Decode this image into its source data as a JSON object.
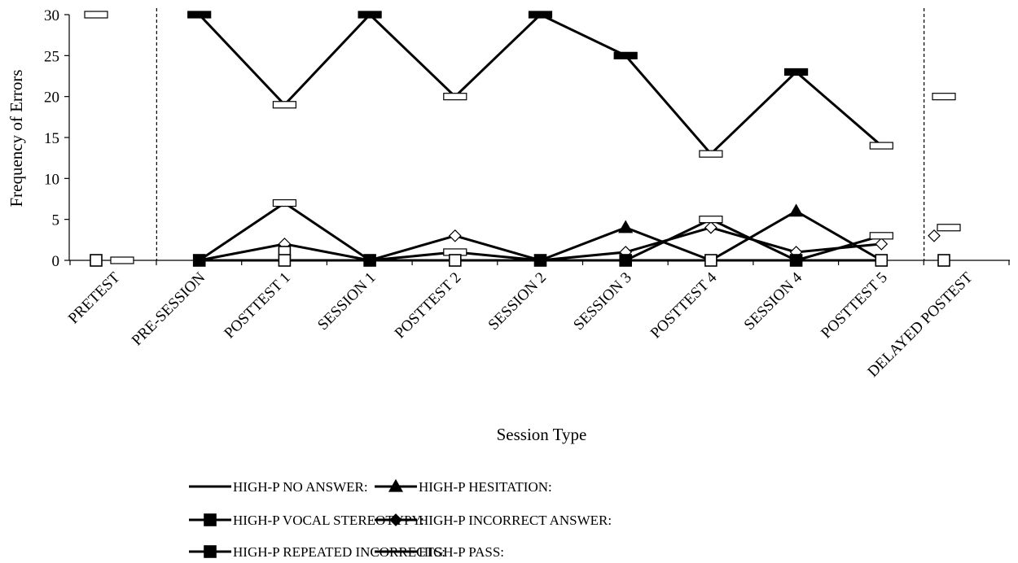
{
  "chart_data": {
    "type": "line",
    "title": "",
    "xlabel": "Session Type",
    "ylabel": "Frequency of Errors",
    "ylim": [
      0,
      30
    ],
    "yticks": [
      0,
      5,
      10,
      15,
      20,
      25,
      30
    ],
    "categories": [
      "PRETEST",
      "PRE-SESSION",
      "POSTTEST 1",
      "SESSION 1",
      "POSTTEST 2",
      "SESSION 2",
      "SESSION 3",
      "POSTTEST 4",
      "SESSION 4",
      "POSTTEST 5",
      "DELAYED POSTEST"
    ],
    "phase_breaks_after": [
      "PRETEST",
      "POSTTEST 5"
    ],
    "series": [
      {
        "name": "HIGH-P NO ANSWER:",
        "marker": "dash",
        "values": [
          30,
          30,
          19,
          30,
          20,
          30,
          25,
          13,
          23,
          14,
          20
        ]
      },
      {
        "name": "HIGH-P HESITATION:",
        "marker": "triangle",
        "values": [
          0,
          0,
          0,
          0,
          0,
          0,
          4,
          0,
          6,
          0,
          0
        ]
      },
      {
        "name": "HIGH-P VOCAL STEREOTYPY:",
        "marker": "square",
        "values": [
          0,
          0,
          0,
          0,
          0,
          0,
          0,
          0,
          0,
          0,
          0
        ]
      },
      {
        "name": "HIGH-P INCORRECT ANSWER:",
        "marker": "diamond",
        "values": [
          0,
          0,
          2,
          0,
          3,
          0,
          1,
          4,
          1,
          2,
          3
        ]
      },
      {
        "name": "HIGH-P REPEATED INCORRECTS:",
        "marker": "square",
        "values": [
          0,
          0,
          0,
          0,
          0,
          0,
          0,
          0,
          0,
          0,
          0
        ]
      },
      {
        "name": "HIGH-P PASS:",
        "marker": "dash",
        "values": [
          0,
          0,
          7,
          0,
          1,
          0,
          0,
          5,
          0,
          3,
          4
        ]
      }
    ],
    "series_on_second_marker": {
      "HIGH-P PASS:": "also small marker at 1 on POSTTEST 1"
    },
    "grid": false,
    "legend_position": "bottom"
  }
}
